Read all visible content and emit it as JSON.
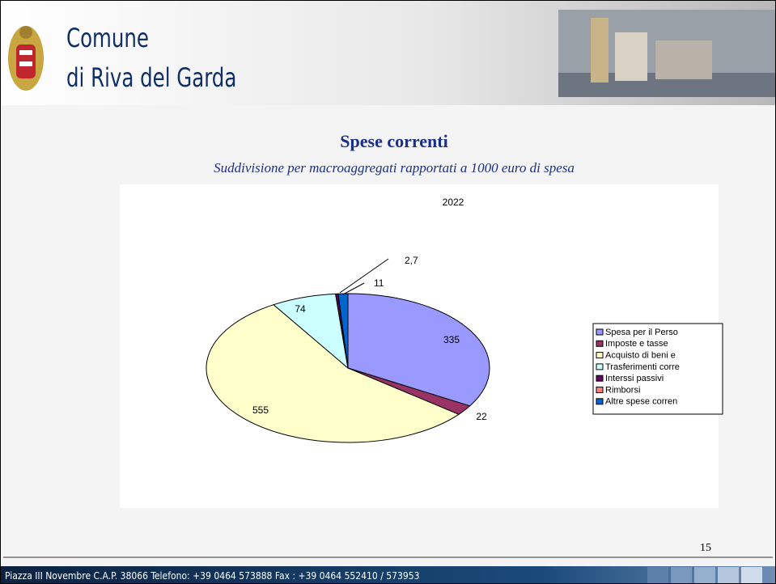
{
  "header": {
    "title_line1": "Comune",
    "title_line2": "di Riva del Garda"
  },
  "chart_data": {
    "type": "pie",
    "title": "Spese correnti",
    "subtitle": "Suddivisione per macroaggregati rapportati a 1000 euro di spesa",
    "chart_label": "2022",
    "categories": [
      "Spesa per il Perso",
      "Imposte e tasse",
      "Acquisto di beni e",
      "Trasferimenti corre",
      "Interssi passivi",
      "Rimborsi",
      "Altre spese corren"
    ],
    "values": [
      335,
      22,
      555,
      74,
      2.7,
      0.3,
      11
    ],
    "value_labels": [
      "335",
      "22",
      "555",
      "74",
      "2,7",
      null,
      "11"
    ],
    "colors": [
      "#9999ff",
      "#993366",
      "#ffffcc",
      "#ccffff",
      "#660066",
      "#ff8080",
      "#0066cc"
    ],
    "legend": "right"
  },
  "page_number": "15",
  "footer": "Piazza III Novembre C.A.P. 38066 Telefono: +39 0464 573888 Fax : +39 0464 552410 / 573953"
}
